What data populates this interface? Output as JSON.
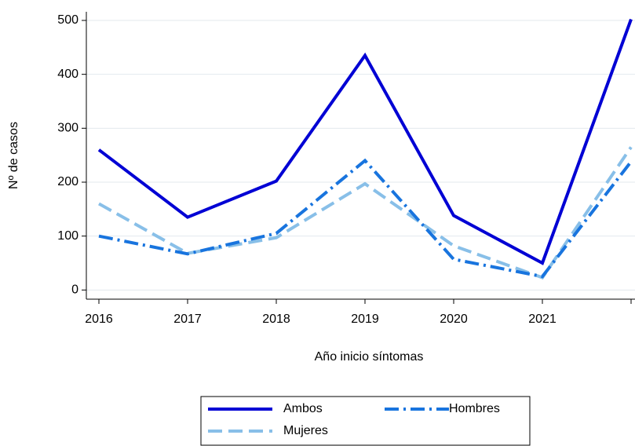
{
  "chart_data": {
    "type": "line",
    "x_label": "Año inicio síntomas",
    "y_label": "Nº de casos",
    "categories": [
      "2016",
      "2017",
      "2018",
      "2019",
      "2020",
      "2021",
      null
    ],
    "series": [
      {
        "name": "Ambos",
        "color": "#0000d4",
        "dash": "solid",
        "values": [
          260,
          135,
          202,
          435,
          138,
          50,
          502
        ]
      },
      {
        "name": "Hombres",
        "color": "#1874de",
        "dash": "dashdot",
        "values": [
          100,
          67,
          105,
          240,
          57,
          25,
          238
        ]
      },
      {
        "name": "Mujeres",
        "color": "#88bfe8",
        "dash": "dashed",
        "values": [
          160,
          68,
          97,
          197,
          82,
          23,
          265
        ]
      }
    ],
    "ylim": [
      -17,
      516
    ],
    "yticks": [
      0,
      100,
      200,
      300,
      400,
      500
    ],
    "grid": true,
    "legend": "bottom"
  }
}
